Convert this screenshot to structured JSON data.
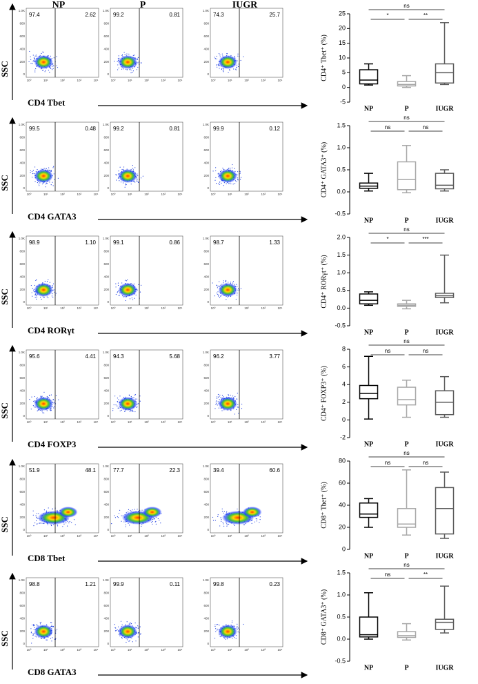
{
  "column_headers": [
    "NP",
    "P",
    "IUGR"
  ],
  "flow": {
    "y_label": "SSC",
    "yticks": [
      "1.0K",
      "800",
      "600",
      "400",
      "200",
      "0"
    ],
    "xticks": [
      "10⁰",
      "10¹",
      "10²",
      "10³",
      "10⁴"
    ],
    "rows": [
      {
        "label": "CD4 Tbet",
        "quadrants": [
          [
            "97.4",
            "2.62"
          ],
          [
            "99.2",
            "0.81"
          ],
          [
            "74.3",
            "25.7"
          ]
        ]
      },
      {
        "label": "CD4 GATA3",
        "quadrants": [
          [
            "99.5",
            "0.48"
          ],
          [
            "99.2",
            "0.81"
          ],
          [
            "99.9",
            "0.12"
          ]
        ]
      },
      {
        "label": "CD4 RORγt",
        "quadrants": [
          [
            "98.9",
            "1.10"
          ],
          [
            "99.1",
            "0.86"
          ],
          [
            "98.7",
            "1.33"
          ]
        ]
      },
      {
        "label": "CD4 FOXP3",
        "quadrants": [
          [
            "95.6",
            "4.41"
          ],
          [
            "94.3",
            "5.68"
          ],
          [
            "96.2",
            "3.77"
          ]
        ]
      },
      {
        "label": "CD8 Tbet",
        "quadrants": [
          [
            "51.9",
            "48.1"
          ],
          [
            "77.7",
            "22.3"
          ],
          [
            "39.4",
            "60.6"
          ]
        ]
      },
      {
        "label": "CD8 GATA3",
        "quadrants": [
          [
            "98.8",
            "1.21"
          ],
          [
            "99.9",
            "0.11"
          ],
          [
            "99.8",
            "0.23"
          ]
        ]
      }
    ]
  },
  "chart_data": [
    {
      "type": "box",
      "ylabel": "CD4⁺ Tbet⁺ (%)",
      "categories": [
        "NP",
        "P",
        "IUGR"
      ],
      "colors": [
        "#000000",
        "#a6a6a6",
        "#595959"
      ],
      "boxes": [
        {
          "min": 0.8,
          "q1": 1.2,
          "median": 2.5,
          "q3": 6,
          "max": 8
        },
        {
          "min": 0,
          "q1": 0.5,
          "median": 1,
          "q3": 2,
          "max": 4
        },
        {
          "min": 1,
          "q1": 1.5,
          "median": 5,
          "q3": 8,
          "max": 22
        }
      ],
      "ylim": [
        -5,
        25
      ],
      "yticks": [
        -5,
        0,
        5,
        10,
        15,
        20,
        25
      ],
      "annotations": [
        "*",
        "**",
        "ns"
      ]
    },
    {
      "type": "box",
      "ylabel": "CD4⁺ GATA3⁺ (%)",
      "categories": [
        "NP",
        "P",
        "IUGR"
      ],
      "colors": [
        "#000000",
        "#a6a6a6",
        "#595959"
      ],
      "boxes": [
        {
          "min": 0.02,
          "q1": 0.08,
          "median": 0.13,
          "q3": 0.2,
          "max": 0.42
        },
        {
          "min": -0.02,
          "q1": 0.05,
          "median": 0.28,
          "q3": 0.68,
          "max": 1.05
        },
        {
          "min": 0.02,
          "q1": 0.07,
          "median": 0.15,
          "q3": 0.42,
          "max": 0.5
        }
      ],
      "ylim": [
        -0.5,
        1.5
      ],
      "yticks": [
        -0.5,
        {
          "value": 0,
          "label": "0.0"
        },
        0.5,
        {
          "value": 1,
          "label": "1.0"
        },
        1.5
      ],
      "annotations": [
        "ns",
        "ns",
        "ns"
      ]
    },
    {
      "type": "box",
      "ylabel": "CD4⁺ RORγt⁺ (%)",
      "categories": [
        "NP",
        "P",
        "IUGR"
      ],
      "colors": [
        "#000000",
        "#a6a6a6",
        "#595959"
      ],
      "boxes": [
        {
          "min": 0.08,
          "q1": 0.12,
          "median": 0.22,
          "q3": 0.4,
          "max": 0.46
        },
        {
          "min": -0.02,
          "q1": 0.05,
          "median": 0.08,
          "q3": 0.12,
          "max": 0.22
        },
        {
          "min": 0.15,
          "q1": 0.3,
          "median": 0.35,
          "q3": 0.42,
          "max": 1.5
        }
      ],
      "ylim": [
        -0.5,
        2
      ],
      "yticks": [
        -0.5,
        {
          "value": 0,
          "label": "0.0"
        },
        0.5,
        {
          "value": 1,
          "label": "1.0"
        },
        1.5,
        {
          "value": 2,
          "label": "2.0"
        }
      ],
      "annotations": [
        "*",
        "***",
        "ns"
      ]
    },
    {
      "type": "box",
      "ylabel": "CD4⁺ FOXP3⁺ (%)",
      "categories": [
        "NP",
        "P",
        "IUGR"
      ],
      "colors": [
        "#000000",
        "#a6a6a6",
        "#595959"
      ],
      "boxes": [
        {
          "min": 0.1,
          "q1": 2.4,
          "median": 3,
          "q3": 3.9,
          "max": 7.2
        },
        {
          "min": 0.3,
          "q1": 1.7,
          "median": 2.3,
          "q3": 3.7,
          "max": 4.5
        },
        {
          "min": 0.3,
          "q1": 0.6,
          "median": 2,
          "q3": 3.3,
          "max": 4.9
        }
      ],
      "ylim": [
        -2,
        8
      ],
      "yticks": [
        -2,
        0,
        2,
        4,
        6,
        8
      ],
      "annotations": [
        "ns",
        "ns",
        "ns"
      ]
    },
    {
      "type": "box",
      "ylabel": "CD8⁺ Tbet⁺ (%)",
      "categories": [
        "NP",
        "P",
        "IUGR"
      ],
      "colors": [
        "#000000",
        "#a6a6a6",
        "#595959"
      ],
      "boxes": [
        {
          "min": 20,
          "q1": 29,
          "median": 32,
          "q3": 42,
          "max": 46
        },
        {
          "min": 13,
          "q1": 20,
          "median": 23,
          "q3": 37,
          "max": 72
        },
        {
          "min": 10,
          "q1": 14,
          "median": 37,
          "q3": 56,
          "max": 70
        }
      ],
      "ylim": [
        0,
        80
      ],
      "yticks": [
        0,
        20,
        40,
        60,
        80
      ],
      "annotations": [
        "ns",
        "ns",
        "ns"
      ]
    },
    {
      "type": "box",
      "ylabel": "CD8⁺ GATA3⁺ (%)",
      "categories": [
        "NP",
        "P",
        "IUGR"
      ],
      "colors": [
        "#000000",
        "#a6a6a6",
        "#595959"
      ],
      "boxes": [
        {
          "min": 0,
          "q1": 0.05,
          "median": 0.1,
          "q3": 0.5,
          "max": 1.05
        },
        {
          "min": -0.02,
          "q1": 0.04,
          "median": 0.08,
          "q3": 0.17,
          "max": 0.35
        },
        {
          "min": 0.14,
          "q1": 0.22,
          "median": 0.38,
          "q3": 0.45,
          "max": 1.2
        }
      ],
      "ylim": [
        -0.5,
        1.5
      ],
      "yticks": [
        -0.5,
        {
          "value": 0,
          "label": "0.0"
        },
        0.5,
        {
          "value": 1,
          "label": "1.0"
        },
        1.5
      ],
      "annotations": [
        "ns",
        "**",
        "ns"
      ]
    }
  ]
}
